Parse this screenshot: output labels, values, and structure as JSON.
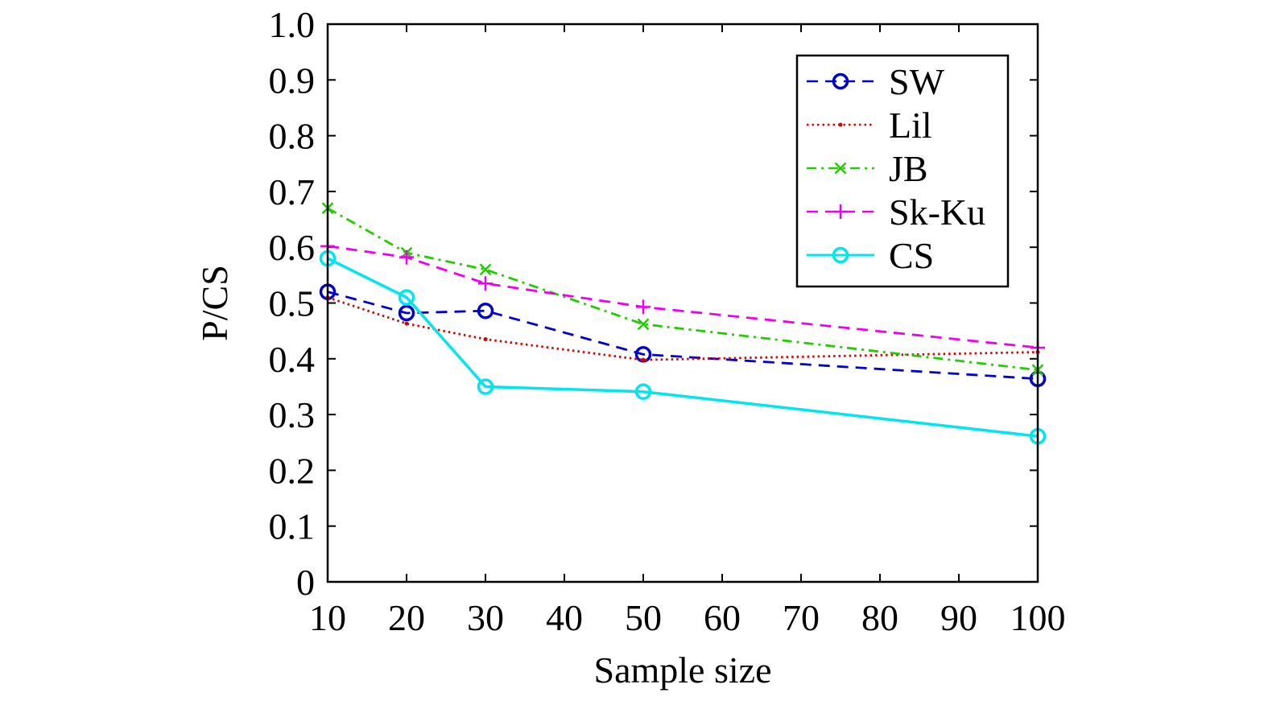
{
  "chart_data": {
    "type": "line",
    "xlabel": "Sample size",
    "ylabel": "P/CS",
    "x": [
      10,
      20,
      30,
      50,
      100
    ],
    "xlim": [
      10,
      100
    ],
    "ylim": [
      0,
      1.0
    ],
    "xticks": [
      "10",
      "20",
      "30",
      "40",
      "50",
      "60",
      "70",
      "80",
      "90",
      "100"
    ],
    "yticks": [
      "0",
      "0.1",
      "0.2",
      "0.3",
      "0.4",
      "0.5",
      "0.6",
      "0.7",
      "0.8",
      "0.9",
      "1.0"
    ],
    "grid": false,
    "legend_position": "top-right",
    "series": [
      {
        "name": "SW",
        "values": [
          0.52,
          0.482,
          0.486,
          0.408,
          0.364
        ],
        "color": "#0000cc",
        "line": "dashed",
        "marker": "circle"
      },
      {
        "name": "Lil",
        "values": [
          0.51,
          0.463,
          0.435,
          0.398,
          0.412
        ],
        "color": "#dd0000",
        "line": "dotted",
        "marker": "dot"
      },
      {
        "name": "JB",
        "values": [
          0.67,
          0.59,
          0.56,
          0.462,
          0.38
        ],
        "color": "#22cc00",
        "line": "dashdot",
        "marker": "x"
      },
      {
        "name": "Sk-Ku",
        "values": [
          0.602,
          0.582,
          0.535,
          0.493,
          0.42
        ],
        "color": "#ee00ee",
        "line": "dashed",
        "marker": "plus"
      },
      {
        "name": "CS",
        "values": [
          0.58,
          0.51,
          0.35,
          0.341,
          0.261
        ],
        "color": "#00e5ee",
        "line": "solid",
        "marker": "circle"
      }
    ]
  }
}
